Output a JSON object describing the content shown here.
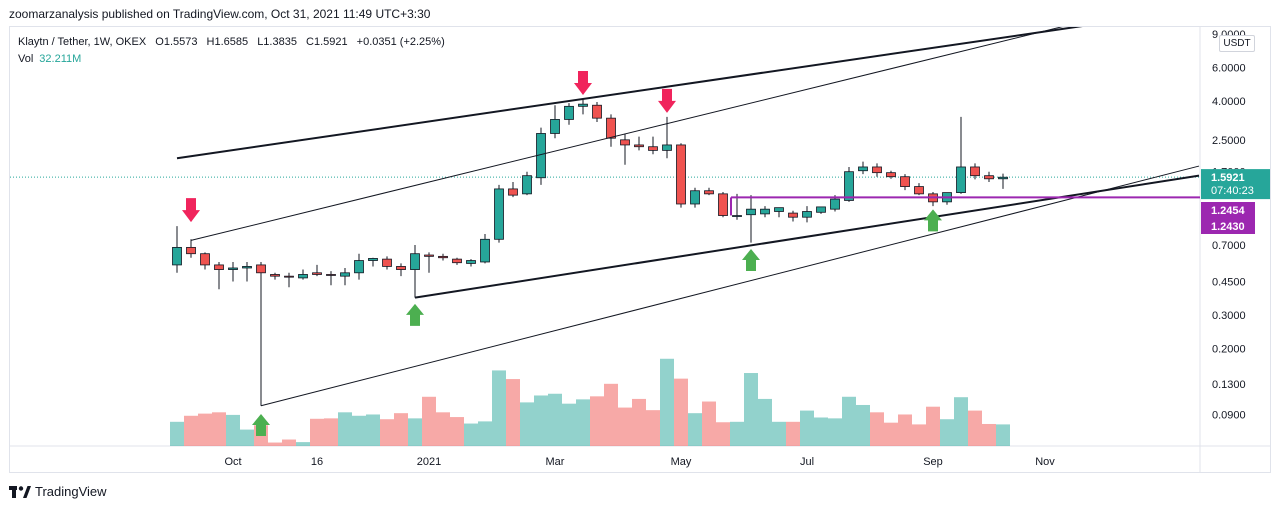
{
  "header": {
    "published": "zoomarzanalysis published on TradingView.com, Oct 31, 2021 11:49 UTC+3:30"
  },
  "legend": {
    "symbol": "Klaytn / Tether, 1W, OKEX",
    "open": "O1.5573",
    "high": "H1.6585",
    "low": "L1.3835",
    "close": "C1.5921",
    "change": "+0.0351 (+2.25%)",
    "vol_label": "Vol",
    "vol_value": "32.211M"
  },
  "currency_button": "USDT",
  "footer": {
    "brand": "TradingView"
  },
  "colors": {
    "up": "#26a69a",
    "down": "#ef5350",
    "purple": "#9c27b0",
    "arrow_down": "#f0245c",
    "arrow_up": "#4caf50"
  },
  "chart_data": {
    "type": "candlestick",
    "scale": "log",
    "y_tick_labels": [
      "6.0000",
      "4.0000",
      "2.5000",
      "1.5921",
      "1.2454",
      "1.2430",
      "0.7000",
      "0.4500",
      "0.3000",
      "0.2000",
      "0.1300",
      "0.0900"
    ],
    "y_ticks": [
      9,
      6.0,
      4.0,
      2.5,
      1.7,
      0.7,
      0.45,
      0.3,
      0.2,
      0.13,
      0.09
    ],
    "y_tick_text": [
      "9.0000",
      "6.0000",
      "4.0000",
      "2.5000",
      "1.7000",
      "0.7000",
      "0.4500",
      "0.3000",
      "0.2000",
      "0.1300",
      "0.0900"
    ],
    "x_labels": [
      {
        "text": "Oct",
        "bar": 4
      },
      {
        "text": "16",
        "bar": 10
      },
      {
        "text": "2021",
        "bar": 18
      },
      {
        "text": "Mar",
        "bar": 27
      },
      {
        "text": "May",
        "bar": 36
      },
      {
        "text": "Jul",
        "bar": 45
      },
      {
        "text": "Sep",
        "bar": 54
      },
      {
        "text": "Nov",
        "bar": 62
      }
    ],
    "price_labels": [
      {
        "price": "1.5921",
        "time": "07:40:23",
        "value": 1.5921,
        "color": "#26a69a"
      },
      {
        "price": "1.2454",
        "value": 1.2454,
        "color": "#9c27b0"
      },
      {
        "price": "1.2430",
        "value": 1.243,
        "color": "#9c27b0"
      }
    ],
    "candles": [
      {
        "o": 0.55,
        "h": 0.88,
        "l": 0.5,
        "c": 0.68
      },
      {
        "o": 0.68,
        "h": 0.75,
        "l": 0.6,
        "c": 0.63
      },
      {
        "o": 0.63,
        "h": 0.64,
        "l": 0.52,
        "c": 0.55
      },
      {
        "o": 0.55,
        "h": 0.57,
        "l": 0.41,
        "c": 0.52
      },
      {
        "o": 0.52,
        "h": 0.57,
        "l": 0.45,
        "c": 0.53
      },
      {
        "o": 0.53,
        "h": 0.57,
        "l": 0.45,
        "c": 0.54
      },
      {
        "o": 0.55,
        "h": 0.57,
        "l": 0.1,
        "c": 0.5
      },
      {
        "o": 0.49,
        "h": 0.5,
        "l": 0.46,
        "c": 0.48
      },
      {
        "o": 0.48,
        "h": 0.5,
        "l": 0.42,
        "c": 0.475
      },
      {
        "o": 0.47,
        "h": 0.52,
        "l": 0.46,
        "c": 0.49
      },
      {
        "o": 0.5,
        "h": 0.55,
        "l": 0.48,
        "c": 0.49
      },
      {
        "o": 0.49,
        "h": 0.51,
        "l": 0.43,
        "c": 0.485
      },
      {
        "o": 0.48,
        "h": 0.53,
        "l": 0.43,
        "c": 0.5
      },
      {
        "o": 0.5,
        "h": 0.63,
        "l": 0.46,
        "c": 0.58
      },
      {
        "o": 0.58,
        "h": 0.6,
        "l": 0.54,
        "c": 0.595
      },
      {
        "o": 0.59,
        "h": 0.61,
        "l": 0.52,
        "c": 0.54
      },
      {
        "o": 0.54,
        "h": 0.56,
        "l": 0.48,
        "c": 0.52
      },
      {
        "o": 0.52,
        "h": 0.7,
        "l": 0.37,
        "c": 0.63
      },
      {
        "o": 0.62,
        "h": 0.64,
        "l": 0.5,
        "c": 0.61
      },
      {
        "o": 0.61,
        "h": 0.63,
        "l": 0.58,
        "c": 0.6
      },
      {
        "o": 0.59,
        "h": 0.6,
        "l": 0.55,
        "c": 0.565
      },
      {
        "o": 0.56,
        "h": 0.59,
        "l": 0.54,
        "c": 0.58
      },
      {
        "o": 0.57,
        "h": 0.8,
        "l": 0.56,
        "c": 0.75
      },
      {
        "o": 0.75,
        "h": 1.45,
        "l": 0.72,
        "c": 1.38
      },
      {
        "o": 1.38,
        "h": 1.5,
        "l": 1.25,
        "c": 1.28
      },
      {
        "o": 1.3,
        "h": 1.7,
        "l": 1.28,
        "c": 1.62
      },
      {
        "o": 1.58,
        "h": 2.9,
        "l": 1.45,
        "c": 2.7
      },
      {
        "o": 2.7,
        "h": 3.8,
        "l": 2.55,
        "c": 3.2
      },
      {
        "o": 3.2,
        "h": 3.9,
        "l": 3.0,
        "c": 3.75
      },
      {
        "o": 3.75,
        "h": 4.1,
        "l": 3.4,
        "c": 3.85
      },
      {
        "o": 3.8,
        "h": 3.95,
        "l": 3.1,
        "c": 3.25
      },
      {
        "o": 3.25,
        "h": 3.4,
        "l": 2.3,
        "c": 2.55
      },
      {
        "o": 2.5,
        "h": 2.7,
        "l": 1.85,
        "c": 2.35
      },
      {
        "o": 2.35,
        "h": 2.6,
        "l": 2.2,
        "c": 2.3
      },
      {
        "o": 2.3,
        "h": 2.6,
        "l": 2.1,
        "c": 2.2
      },
      {
        "o": 2.2,
        "h": 3.3,
        "l": 2.0,
        "c": 2.35
      },
      {
        "o": 2.35,
        "h": 2.4,
        "l": 1.1,
        "c": 1.15
      },
      {
        "o": 1.15,
        "h": 1.4,
        "l": 1.1,
        "c": 1.35
      },
      {
        "o": 1.35,
        "h": 1.4,
        "l": 1.28,
        "c": 1.3
      },
      {
        "o": 1.3,
        "h": 1.33,
        "l": 0.98,
        "c": 1.0
      },
      {
        "o": 0.99,
        "h": 1.3,
        "l": 0.95,
        "c": 1.0
      },
      {
        "o": 1.01,
        "h": 1.28,
        "l": 0.72,
        "c": 1.08
      },
      {
        "o": 1.02,
        "h": 1.12,
        "l": 0.98,
        "c": 1.08
      },
      {
        "o": 1.05,
        "h": 1.1,
        "l": 0.98,
        "c": 1.1
      },
      {
        "o": 1.03,
        "h": 1.06,
        "l": 0.93,
        "c": 0.98
      },
      {
        "o": 0.98,
        "h": 1.12,
        "l": 0.92,
        "c": 1.05
      },
      {
        "o": 1.04,
        "h": 1.1,
        "l": 1.02,
        "c": 1.11
      },
      {
        "o": 1.08,
        "h": 1.28,
        "l": 1.05,
        "c": 1.22
      },
      {
        "o": 1.2,
        "h": 1.8,
        "l": 1.18,
        "c": 1.7
      },
      {
        "o": 1.72,
        "h": 1.92,
        "l": 1.65,
        "c": 1.8
      },
      {
        "o": 1.8,
        "h": 1.88,
        "l": 1.6,
        "c": 1.68
      },
      {
        "o": 1.68,
        "h": 1.72,
        "l": 1.56,
        "c": 1.6
      },
      {
        "o": 1.6,
        "h": 1.65,
        "l": 1.36,
        "c": 1.42
      },
      {
        "o": 1.42,
        "h": 1.48,
        "l": 1.28,
        "c": 1.3
      },
      {
        "o": 1.3,
        "h": 1.33,
        "l": 1.12,
        "c": 1.18
      },
      {
        "o": 1.18,
        "h": 1.32,
        "l": 1.14,
        "c": 1.32
      },
      {
        "o": 1.32,
        "h": 3.3,
        "l": 1.3,
        "c": 1.8
      },
      {
        "o": 1.8,
        "h": 1.88,
        "l": 1.55,
        "c": 1.62
      },
      {
        "o": 1.62,
        "h": 1.7,
        "l": 1.5,
        "c": 1.56
      },
      {
        "o": 1.56,
        "h": 1.66,
        "l": 1.38,
        "c": 1.59
      }
    ],
    "volume": [
      5.6,
      7.0,
      7.5,
      7.8,
      7.2,
      3.8,
      4.8,
      0.8,
      1.5,
      0.9,
      6.3,
      6.4,
      7.8,
      7.0,
      7.3,
      6.2,
      7.6,
      6.4,
      11.4,
      7.8,
      6.7,
      5.2,
      5.7,
      17.5,
      15.5,
      10.1,
      11.7,
      12.1,
      9.8,
      10.8,
      11.5,
      14.4,
      8.9,
      10.9,
      8.3,
      20.2,
      15.6,
      7.6,
      10.3,
      5.5,
      5.6,
      16.9,
      10.9,
      5.6,
      5.6,
      8.2,
      6.6,
      6.4,
      11.4,
      9.5,
      7.8,
      5.4,
      7.3,
      5.0,
      9.1,
      6.2,
      11.3,
      8.2,
      5.1,
      5.0
    ],
    "volume_scale_max": 22,
    "trendlines": [
      {
        "name": "upper-channel",
        "from": {
          "bar": 0,
          "price": 2.0
        },
        "to": {
          "bar": 67,
          "price": 10.5
        },
        "weight": 2
      },
      {
        "name": "inner-upper",
        "from": {
          "bar": 1,
          "price": 0.74
        },
        "to": {
          "bar": 67,
          "price": 11.5
        },
        "weight": 1
      },
      {
        "name": "lower-support",
        "from": {
          "bar": 17,
          "price": 0.37
        },
        "to": {
          "bar": 73,
          "price": 1.62
        },
        "weight": 2
      },
      {
        "name": "long-support",
        "from": {
          "bar": 6,
          "price": 0.1
        },
        "to": {
          "bar": 73,
          "price": 1.82
        },
        "weight": 1
      }
    ],
    "horizontal_levels": [
      {
        "name": "purple-resistance",
        "price": 1.245,
        "from_bar": 40,
        "color": "#9c27b0"
      }
    ],
    "signals": [
      {
        "type": "down",
        "bar": 1,
        "price": 0.88
      },
      {
        "type": "down",
        "bar": 29,
        "price": 4.1
      },
      {
        "type": "down",
        "bar": 35,
        "price": 3.3
      },
      {
        "type": "up",
        "bar": 6,
        "price": 0.095
      },
      {
        "type": "up",
        "bar": 17,
        "price": 0.36
      },
      {
        "type": "up",
        "bar": 41,
        "price": 0.7
      },
      {
        "type": "up",
        "bar": 54,
        "price": 1.13
      }
    ],
    "current_price": 1.5921
  }
}
